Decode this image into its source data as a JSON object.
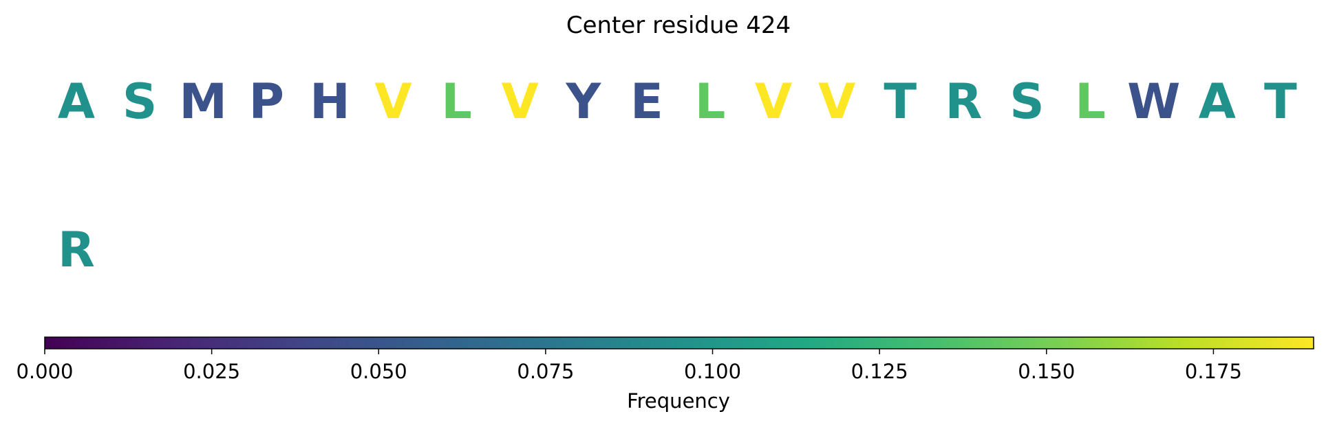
{
  "chart_data": {
    "type": "heatmap",
    "title": "Center residue 424",
    "residues": [
      {
        "letter": "A",
        "row": 0,
        "col": 0,
        "frequency": 0.095
      },
      {
        "letter": "S",
        "row": 0,
        "col": 1,
        "frequency": 0.095
      },
      {
        "letter": "M",
        "row": 0,
        "col": 2,
        "frequency": 0.048
      },
      {
        "letter": "P",
        "row": 0,
        "col": 3,
        "frequency": 0.048
      },
      {
        "letter": "H",
        "row": 0,
        "col": 4,
        "frequency": 0.048
      },
      {
        "letter": "V",
        "row": 0,
        "col": 5,
        "frequency": 0.19
      },
      {
        "letter": "L",
        "row": 0,
        "col": 6,
        "frequency": 0.143
      },
      {
        "letter": "V",
        "row": 0,
        "col": 7,
        "frequency": 0.19
      },
      {
        "letter": "Y",
        "row": 0,
        "col": 8,
        "frequency": 0.048
      },
      {
        "letter": "E",
        "row": 0,
        "col": 9,
        "frequency": 0.048
      },
      {
        "letter": "L",
        "row": 0,
        "col": 10,
        "frequency": 0.143
      },
      {
        "letter": "V",
        "row": 0,
        "col": 11,
        "frequency": 0.19
      },
      {
        "letter": "V",
        "row": 0,
        "col": 12,
        "frequency": 0.19
      },
      {
        "letter": "T",
        "row": 0,
        "col": 13,
        "frequency": 0.095
      },
      {
        "letter": "R",
        "row": 0,
        "col": 14,
        "frequency": 0.095
      },
      {
        "letter": "S",
        "row": 0,
        "col": 15,
        "frequency": 0.095
      },
      {
        "letter": "L",
        "row": 0,
        "col": 16,
        "frequency": 0.143
      },
      {
        "letter": "W",
        "row": 0,
        "col": 17,
        "frequency": 0.048
      },
      {
        "letter": "A",
        "row": 0,
        "col": 18,
        "frequency": 0.095
      },
      {
        "letter": "T",
        "row": 0,
        "col": 19,
        "frequency": 0.095
      },
      {
        "letter": "R",
        "row": 1,
        "col": 0,
        "frequency": 0.095
      }
    ],
    "colorbar": {
      "label": "Frequency",
      "colormap": "viridis",
      "range": [
        0,
        0.19
      ],
      "ticks": [
        0.0,
        0.025,
        0.05,
        0.075,
        0.1,
        0.125,
        0.15,
        0.175
      ],
      "tick_labels": [
        "0.000",
        "0.025",
        "0.050",
        "0.075",
        "0.100",
        "0.125",
        "0.150",
        "0.175"
      ],
      "orientation": "horizontal",
      "placement": "bottom"
    }
  }
}
